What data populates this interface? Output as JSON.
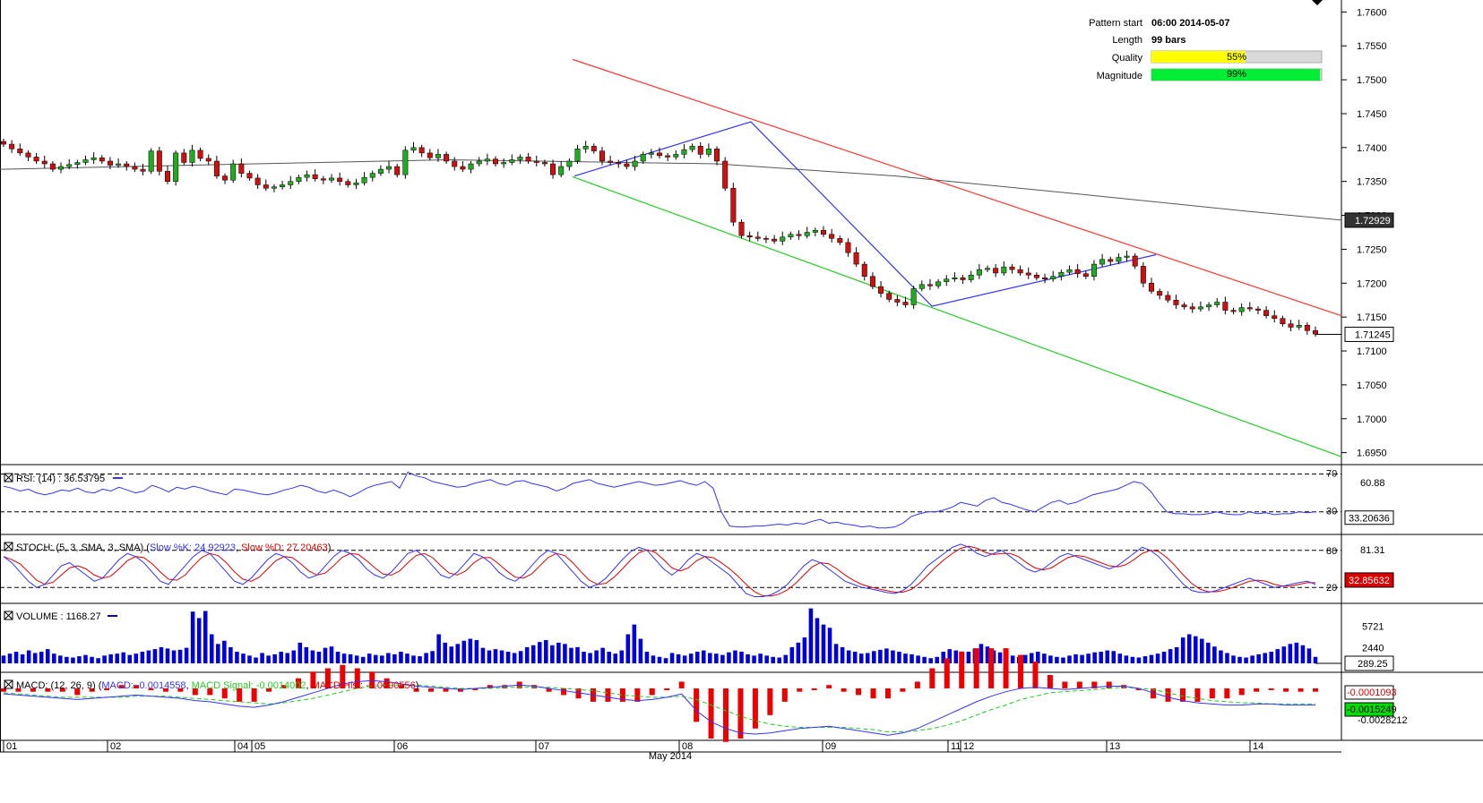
{
  "info": {
    "pattern_start_label": "Pattern start",
    "pattern_start": "06:00 2014-05-07",
    "length_label": "Length",
    "length": "99 bars",
    "quality_label": "Quality",
    "quality_pct": 55,
    "quality_text": "55%",
    "magnitude_label": "Magnitude",
    "magnitude_pct": 99,
    "magnitude_text": "99%"
  },
  "colors": {
    "up": "#22aa22",
    "down": "#cc1111",
    "resistance": "#ff3333",
    "support": "#22cc22",
    "zigzag": "#3333ff",
    "ma": "#555555",
    "quality": "#ffff00",
    "magnitude": "#00ee33"
  },
  "chart_data": [
    {
      "type": "candlestick",
      "panel": "price",
      "ylim": [
        1.6935,
        1.7615
      ],
      "yticks": [
        "1.7600",
        "1.7550",
        "1.7500",
        "1.7450",
        "1.7400",
        "1.7350",
        "1.7300",
        "1.7250",
        "1.7200",
        "1.7150",
        "1.7100",
        "1.7050",
        "1.7000",
        "1.6950"
      ],
      "last_price": "1.71245",
      "ma_value": "1.72929",
      "date_labels": [
        "01",
        "02",
        "04",
        "05",
        "06",
        "07",
        "08",
        "09",
        "11",
        "12",
        "13",
        "14"
      ],
      "month_label": "May 2014",
      "closes": [
        1.7405,
        1.7398,
        1.7392,
        1.7386,
        1.738,
        1.7376,
        1.7368,
        1.7372,
        1.7375,
        1.7378,
        1.7382,
        1.7385,
        1.738,
        1.7374,
        1.7376,
        1.7372,
        1.7368,
        1.7365,
        1.7395,
        1.7365,
        1.735,
        1.7392,
        1.7378,
        1.7396,
        1.7384,
        1.738,
        1.7358,
        1.7352,
        1.7376,
        1.7362,
        1.7355,
        1.7345,
        1.734,
        1.7342,
        1.7345,
        1.735,
        1.7356,
        1.736,
        1.7354,
        1.7352,
        1.7355,
        1.735,
        1.7345,
        1.7348,
        1.7356,
        1.7362,
        1.7368,
        1.7372,
        1.736,
        1.7396,
        1.74,
        1.7392,
        1.7385,
        1.739,
        1.738,
        1.7372,
        1.7368,
        1.7376,
        1.738,
        1.7383,
        1.7376,
        1.7378,
        1.7382,
        1.7386,
        1.738,
        1.7378,
        1.7376,
        1.736,
        1.7372,
        1.738,
        1.7398,
        1.7402,
        1.7395,
        1.738,
        1.7378,
        1.7376,
        1.7372,
        1.738,
        1.739,
        1.7392,
        1.7388,
        1.7386,
        1.739,
        1.7397,
        1.7402,
        1.739,
        1.7398,
        1.738,
        1.734,
        1.729,
        1.727,
        1.7268,
        1.7266,
        1.7265,
        1.7262,
        1.7268,
        1.7272,
        1.727,
        1.7275,
        1.7278,
        1.7272,
        1.7266,
        1.726,
        1.7245,
        1.7228,
        1.721,
        1.7195,
        1.7185,
        1.7176,
        1.7172,
        1.7168,
        1.7192,
        1.7198,
        1.7196,
        1.7202,
        1.7206,
        1.7208,
        1.7205,
        1.7212,
        1.722,
        1.7222,
        1.7215,
        1.7224,
        1.722,
        1.7215,
        1.7212,
        1.7208,
        1.7206,
        1.721,
        1.7216,
        1.722,
        1.7214,
        1.721,
        1.7228,
        1.7235,
        1.7232,
        1.7238,
        1.724,
        1.7225,
        1.72,
        1.7188,
        1.7182,
        1.7175,
        1.7168,
        1.7165,
        1.7162,
        1.7165,
        1.7168,
        1.7172,
        1.716,
        1.7158,
        1.7164,
        1.7162,
        1.716,
        1.7152,
        1.7148,
        1.714,
        1.7135,
        1.7138,
        1.713,
        1.7125
      ],
      "lines": {
        "resistance": [
          [
            639,
            1.753
          ],
          [
            1497,
            1.7152
          ]
        ],
        "support": [
          [
            639,
            1.7357
          ],
          [
            1497,
            1.6944
          ]
        ],
        "zigzag": [
          [
            641,
            1.7358
          ],
          [
            838,
            1.7438
          ],
          [
            1040,
            1.7166
          ],
          [
            1290,
            1.7242
          ]
        ],
        "ma": [
          [
            0,
            1.7368
          ],
          [
            500,
            1.7382
          ],
          [
            800,
            1.7376
          ],
          [
            1000,
            1.7358
          ],
          [
            1200,
            1.7332
          ],
          [
            1400,
            1.7305
          ],
          [
            1497,
            1.7293
          ]
        ]
      }
    },
    {
      "type": "line",
      "panel": "rsi",
      "label": "RSI: (14) : 36.53795",
      "ylim": [
        8,
        78
      ],
      "levels": [
        "70",
        "30"
      ],
      "tick": "60.88",
      "last": "33.20636",
      "values": [
        57,
        55,
        52,
        54,
        50,
        48,
        50,
        53,
        52,
        55,
        51,
        50,
        54,
        52,
        56,
        53,
        50,
        52,
        58,
        55,
        51,
        56,
        54,
        57,
        55,
        52,
        50,
        48,
        54,
        53,
        51,
        49,
        48,
        50,
        53,
        55,
        58,
        56,
        52,
        50,
        53,
        50,
        46,
        50,
        55,
        58,
        60,
        62,
        55,
        72,
        68,
        66,
        62,
        60,
        58,
        56,
        57,
        60,
        62,
        64,
        60,
        58,
        62,
        63,
        60,
        58,
        56,
        52,
        55,
        60,
        62,
        64,
        60,
        58,
        56,
        58,
        60,
        62,
        60,
        58,
        59,
        61,
        63,
        60,
        58,
        62,
        55,
        30,
        15,
        14,
        14,
        15,
        15,
        16,
        17,
        16,
        18,
        17,
        20,
        22,
        18,
        19,
        17,
        16,
        14,
        15,
        13,
        13,
        14,
        18,
        25,
        28,
        30,
        30,
        32,
        35,
        40,
        38,
        36,
        42,
        45,
        40,
        38,
        35,
        32,
        30,
        35,
        40,
        42,
        38,
        40,
        44,
        48,
        50,
        52,
        54,
        58,
        62,
        60,
        52,
        40,
        30,
        28,
        28,
        27,
        27,
        28,
        30,
        28,
        27,
        27,
        30,
        28,
        29,
        27,
        28,
        28,
        30,
        29,
        30
      ]
    },
    {
      "type": "line",
      "panel": "stoch",
      "label": "STOCH: (5, 3, SMA, 3, SMA)",
      "k_label": "Slow %K: 24.92923",
      "d_label": "Slow %D: 27.20463",
      "ylim": [
        0,
        100
      ],
      "levels": [
        "80",
        "20"
      ],
      "tick": "81.31",
      "last": "32.85632",
      "k": [
        70,
        60,
        45,
        30,
        20,
        25,
        40,
        55,
        60,
        50,
        40,
        30,
        35,
        50,
        65,
        75,
        70,
        60,
        45,
        30,
        25,
        40,
        55,
        70,
        80,
        75,
        60,
        45,
        30,
        25,
        35,
        50,
        65,
        75,
        70,
        60,
        45,
        35,
        40,
        55,
        70,
        80,
        75,
        65,
        50,
        40,
        35,
        45,
        60,
        75,
        80,
        70,
        55,
        40,
        35,
        45,
        60,
        75,
        70,
        60,
        45,
        35,
        30,
        40,
        55,
        70,
        80,
        75,
        60,
        45,
        30,
        20,
        25,
        35,
        50,
        65,
        78,
        85,
        80,
        65,
        50,
        40,
        50,
        65,
        75,
        70,
        60,
        50,
        40,
        25,
        10,
        5,
        5,
        8,
        15,
        25,
        40,
        55,
        65,
        60,
        50,
        40,
        30,
        25,
        20,
        18,
        15,
        12,
        10,
        15,
        25,
        40,
        55,
        65,
        75,
        85,
        90,
        85,
        75,
        70,
        75,
        80,
        70,
        60,
        50,
        45,
        50,
        60,
        70,
        75,
        70,
        65,
        60,
        55,
        50,
        55,
        65,
        75,
        85,
        80,
        70,
        55,
        40,
        25,
        15,
        12,
        12,
        15,
        20,
        25,
        30,
        35,
        30,
        25,
        20,
        22,
        25,
        28,
        30,
        25
      ]
    },
    {
      "type": "bar",
      "panel": "volume",
      "label": "VOLUME : 1168.27",
      "ylim": [
        0,
        9000
      ],
      "ticks": [
        "5721",
        "2440"
      ],
      "last": "289.25",
      "values": [
        1200,
        1500,
        1800,
        1400,
        2000,
        1600,
        1800,
        2200,
        1500,
        1200,
        1000,
        900,
        1100,
        1300,
        1000,
        800,
        1200,
        1400,
        1500,
        1700,
        1300,
        1500,
        1800,
        2000,
        2200,
        2500,
        2300,
        2000,
        2100,
        2400,
        8000,
        7000,
        8100,
        4500,
        3000,
        3500,
        2500,
        1800,
        1500,
        1200,
        900,
        1600,
        1200,
        1400,
        1800,
        1600,
        2000,
        3200,
        2500,
        2000,
        1800,
        2400,
        2600,
        1800,
        1500,
        1400,
        1200,
        1000,
        1500,
        1300,
        1200,
        1600,
        1400,
        1800,
        1500,
        1200,
        1100,
        1600,
        1900,
        4500,
        3200,
        2600,
        3000,
        3500,
        3800,
        3600,
        2400,
        2000,
        2200,
        2000,
        1800,
        1600,
        1900,
        2500,
        2800,
        3300,
        3600,
        2800,
        3200,
        3000,
        2400,
        2500,
        1800,
        1600,
        2000,
        2400,
        1800,
        1500,
        2000,
        4500,
        6000,
        3800,
        1800,
        1200,
        1000,
        800,
        1600,
        1400,
        1200,
        1500,
        1800,
        2000,
        1600,
        1500,
        1300,
        1700,
        2000,
        1800,
        1400,
        1200,
        1500,
        1200,
        1000,
        900,
        1300,
        2500,
        3200,
        4000,
        8500,
        7000,
        6000,
        5500,
        3000,
        2500,
        2000,
        1800,
        1500,
        1600,
        1900,
        2100,
        2300,
        2000,
        1800,
        1500,
        1400,
        1200,
        1000,
        800,
        1000,
        1800,
        2200,
        2000,
        1600,
        1800,
        2300,
        3000,
        2600,
        2000,
        1700,
        1400,
        1200,
        1000,
        1300,
        1600,
        1800,
        1500,
        1200,
        1000,
        900,
        1200,
        1400,
        1300,
        1500,
        1700,
        1800,
        2000,
        1900,
        1500,
        1200,
        1000,
        900,
        1100,
        1300,
        1500,
        1800,
        2200,
        2500,
        4000,
        4500,
        4200,
        3800,
        3200,
        2600,
        2000,
        1600,
        1200,
        1000,
        900,
        1200,
        1400,
        1600,
        1800,
        2200,
        2600,
        3000,
        3200,
        2800,
        2300,
        1000
      ]
    },
    {
      "type": "line",
      "panel": "macd",
      "label": "MACD: (12, 26, 9)",
      "macd_label": "MACD: -0.0014558",
      "signal_label": "MACD Signal: -0.0014002",
      "hist_label": "MACD Hist: -0.0000556",
      "ylim": [
        -0.0045,
        0.0012
      ],
      "last_hist": "-0.0001093",
      "last_macd": "-0.0015249",
      "tick": "-0.0028212",
      "macd": [
        -0.0005,
        -0.0006,
        -0.0007,
        -0.0008,
        -0.0009,
        -0.001,
        -0.0009,
        -0.0008,
        -0.0007,
        -0.0006,
        -0.0007,
        -0.0008,
        -0.0009,
        -0.0011,
        -0.0012,
        -0.0014,
        -0.0016,
        -0.0017,
        -0.0015,
        -0.0012,
        -0.0008,
        -0.0004,
        0.0,
        0.0004,
        0.0006,
        0.0007,
        0.0006,
        0.0004,
        0.0002,
        0.0001,
        0.0,
        -0.0001,
        0.0,
        0.0001,
        0.0002,
        0.0003,
        0.0002,
        0.0,
        -0.0002,
        -0.0004,
        -0.0006,
        -0.0008,
        -0.001,
        -0.0011,
        -0.001,
        -0.0008,
        -0.0005,
        -0.002,
        -0.003,
        -0.0036,
        -0.004,
        -0.0041,
        -0.004,
        -0.0038,
        -0.0036,
        -0.0035,
        -0.0034,
        -0.0036,
        -0.0038,
        -0.004,
        -0.0042,
        -0.004,
        -0.0036,
        -0.003,
        -0.0024,
        -0.0018,
        -0.0012,
        -0.0007,
        -0.0003,
        0.0,
        0.0001,
        0.0,
        -0.0001,
        0.0,
        0.0001,
        0.0002,
        0.0002,
        0.0,
        -0.0004,
        -0.0008,
        -0.0011,
        -0.0013,
        -0.0014,
        -0.0015,
        -0.0015,
        -0.0014,
        -0.0014,
        -0.0015,
        -0.0015,
        -0.0015
      ],
      "signal": [
        -0.0004,
        -0.0005,
        -0.0006,
        -0.0007,
        -0.0008,
        -0.0008,
        -0.0008,
        -0.0008,
        -0.0008,
        -0.0007,
        -0.0007,
        -0.0007,
        -0.0008,
        -0.0009,
        -0.001,
        -0.0011,
        -0.0012,
        -0.0013,
        -0.0014,
        -0.0013,
        -0.0011,
        -0.0009,
        -0.0006,
        -0.0003,
        0.0,
        0.0002,
        0.0003,
        0.0003,
        0.0003,
        0.0002,
        0.0001,
        0.0,
        0.0,
        0.0,
        0.0001,
        0.0001,
        0.0001,
        0.0001,
        0.0,
        -0.0001,
        -0.0002,
        -0.0004,
        -0.0006,
        -0.0007,
        -0.0008,
        -0.0008,
        -0.0007,
        -0.001,
        -0.0015,
        -0.002,
        -0.0025,
        -0.0029,
        -0.0032,
        -0.0034,
        -0.0035,
        -0.0035,
        -0.0035,
        -0.0035,
        -0.0036,
        -0.0037,
        -0.0039,
        -0.0039,
        -0.0038,
        -0.0036,
        -0.0033,
        -0.0029,
        -0.0024,
        -0.0019,
        -0.0015,
        -0.001,
        -0.0007,
        -0.0004,
        -0.0003,
        -0.0002,
        -0.0001,
        0.0,
        0.0001,
        0.0,
        -0.0001,
        -0.0004,
        -0.0007,
        -0.0009,
        -0.0011,
        -0.0012,
        -0.0013,
        -0.0013,
        -0.0014,
        -0.0014,
        -0.0014,
        -0.0014
      ]
    }
  ]
}
